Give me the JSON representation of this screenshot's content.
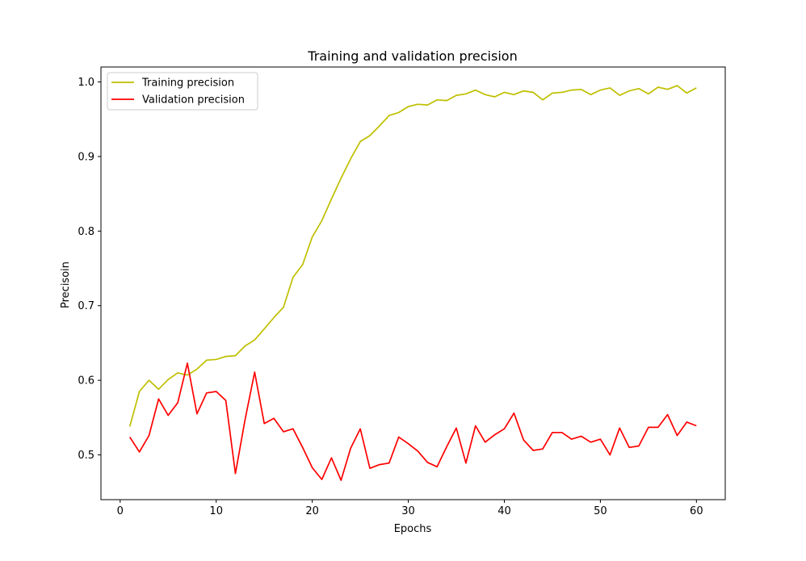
{
  "chart_data": {
    "type": "line",
    "title": "Training and validation precision",
    "xlabel": "Epochs",
    "ylabel": "Precisoin",
    "xlim": [
      -2,
      63
    ],
    "ylim": [
      0.44,
      1.02
    ],
    "xticks": [
      0,
      10,
      20,
      30,
      40,
      50,
      60
    ],
    "yticks": [
      0.5,
      0.6,
      0.7,
      0.8,
      0.9,
      1.0
    ],
    "grid": false,
    "legend_position": "top-left",
    "x": [
      1,
      2,
      3,
      4,
      5,
      6,
      7,
      8,
      9,
      10,
      11,
      12,
      13,
      14,
      15,
      16,
      17,
      18,
      19,
      20,
      21,
      22,
      23,
      24,
      25,
      26,
      27,
      28,
      29,
      30,
      31,
      32,
      33,
      34,
      35,
      36,
      37,
      38,
      39,
      40,
      41,
      42,
      43,
      44,
      45,
      46,
      47,
      48,
      49,
      50,
      51,
      52,
      53,
      54,
      55,
      56,
      57,
      58,
      59,
      60
    ],
    "series": [
      {
        "name": "Training precision",
        "color": "#bfbf00",
        "values": [
          0.538,
          0.585,
          0.6,
          0.588,
          0.601,
          0.61,
          0.607,
          0.615,
          0.627,
          0.628,
          0.632,
          0.633,
          0.646,
          0.654,
          0.669,
          0.684,
          0.698,
          0.738,
          0.755,
          0.792,
          0.814,
          0.843,
          0.871,
          0.897,
          0.92,
          0.928,
          0.941,
          0.955,
          0.959,
          0.967,
          0.97,
          0.969,
          0.976,
          0.975,
          0.982,
          0.984,
          0.989,
          0.983,
          0.98,
          0.986,
          0.983,
          0.988,
          0.986,
          0.976,
          0.985,
          0.986,
          0.989,
          0.99,
          0.983,
          0.989,
          0.992,
          0.982,
          0.988,
          0.991,
          0.984,
          0.993,
          0.99,
          0.995,
          0.985,
          0.992
        ]
      },
      {
        "name": "Validation precision",
        "color": "#ff0000",
        "values": [
          0.524,
          0.504,
          0.526,
          0.575,
          0.553,
          0.57,
          0.623,
          0.555,
          0.583,
          0.585,
          0.573,
          0.475,
          0.547,
          0.611,
          0.542,
          0.549,
          0.531,
          0.535,
          0.51,
          0.483,
          0.467,
          0.496,
          0.466,
          0.509,
          0.535,
          0.482,
          0.487,
          0.489,
          0.524,
          0.515,
          0.505,
          0.49,
          0.484,
          0.511,
          0.536,
          0.489,
          0.539,
          0.517,
          0.527,
          0.535,
          0.556,
          0.52,
          0.506,
          0.508,
          0.53,
          0.53,
          0.521,
          0.525,
          0.517,
          0.521,
          0.5,
          0.536,
          0.51,
          0.512,
          0.537,
          0.537,
          0.554,
          0.526,
          0.544,
          0.539
        ]
      }
    ]
  }
}
